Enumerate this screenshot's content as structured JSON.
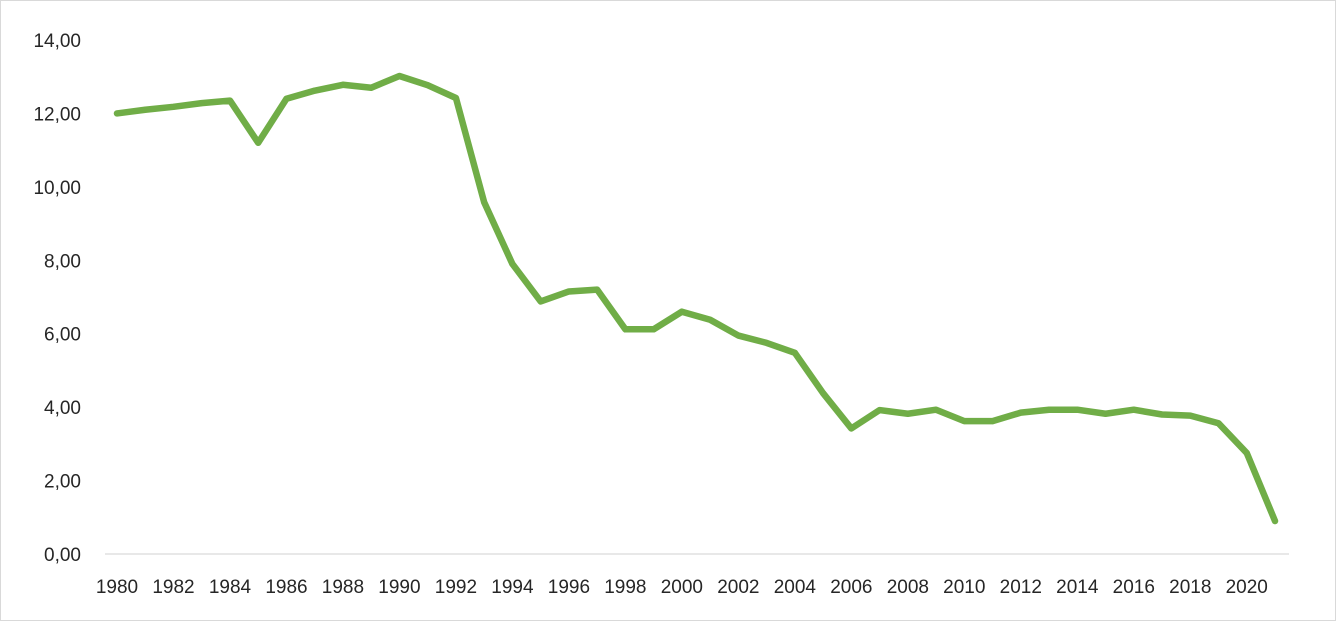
{
  "chart_data": {
    "type": "line",
    "title": "",
    "xlabel": "",
    "ylabel": "",
    "ylim": [
      0,
      14
    ],
    "yticks": [
      "0,00",
      "2,00",
      "4,00",
      "6,00",
      "8,00",
      "10,00",
      "12,00",
      "14,00"
    ],
    "xticks": [
      "1980",
      "1982",
      "1984",
      "1986",
      "1988",
      "1990",
      "1992",
      "1994",
      "1996",
      "1998",
      "2000",
      "2002",
      "2004",
      "2006",
      "2008",
      "2010",
      "2012",
      "2014",
      "2016",
      "2018",
      "2020"
    ],
    "grid": false,
    "legend": "none",
    "line_color": "#70AD47",
    "x": [
      1980,
      1981,
      1982,
      1983,
      1984,
      1985,
      1986,
      1987,
      1988,
      1989,
      1990,
      1991,
      1992,
      1993,
      1994,
      1995,
      1996,
      1997,
      1998,
      1999,
      2000,
      2001,
      2002,
      2003,
      2004,
      2005,
      2006,
      2007,
      2008,
      2009,
      2010,
      2011,
      2012,
      2013,
      2014,
      2015,
      2016,
      2017,
      2018,
      2019,
      2020,
      2021
    ],
    "series": [
      {
        "values": [
          12.0,
          12.1,
          12.18,
          12.28,
          12.35,
          11.2,
          12.4,
          12.62,
          12.78,
          12.7,
          13.02,
          12.77,
          12.42,
          9.58,
          7.9,
          6.88,
          7.15,
          7.2,
          6.12,
          6.12,
          6.6,
          6.38,
          5.95,
          5.75,
          5.48,
          4.38,
          3.42,
          3.92,
          3.82,
          3.93,
          3.62,
          3.62,
          3.85,
          3.93,
          3.93,
          3.82,
          3.93,
          3.8,
          3.77,
          3.56,
          2.75,
          0.9
        ]
      }
    ]
  }
}
